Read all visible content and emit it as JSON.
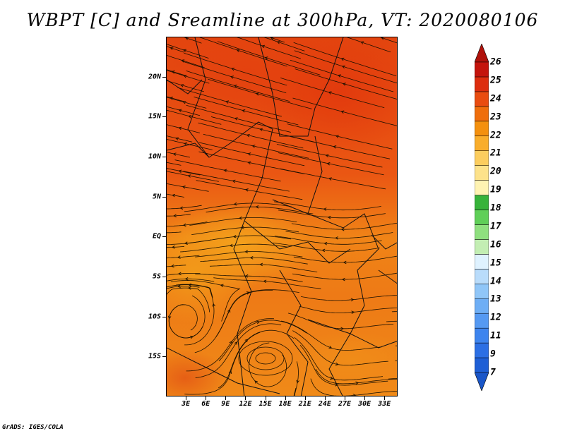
{
  "title": "WBPT [C] and Sreamline at 300hPa, VT: 2020080106",
  "footer": "GrADS: IGES/COLA",
  "map": {
    "lat_range": [
      -20,
      25
    ],
    "lon_range": [
      0,
      35
    ],
    "lat_labels": [
      "20N",
      "15N",
      "10N",
      "5N",
      "EQ",
      "5S",
      "10S",
      "15S"
    ],
    "lat_values": [
      20,
      15,
      10,
      5,
      0,
      -5,
      -10,
      -15
    ],
    "lon_labels": [
      "3E",
      "6E",
      "9E",
      "12E",
      "15E",
      "18E",
      "21E",
      "24E",
      "27E",
      "30E",
      "33E"
    ],
    "lon_values": [
      3,
      6,
      9,
      12,
      15,
      18,
      21,
      24,
      27,
      30,
      33
    ],
    "field": "WBPT",
    "overlay": "streamlines"
  },
  "colorbar": {
    "labels": [
      "7",
      "9",
      "11",
      "12",
      "13",
      "14",
      "15",
      "16",
      "17",
      "18",
      "19",
      "20",
      "21",
      "22",
      "23",
      "24",
      "25",
      "26"
    ],
    "colors": [
      "#1e5fd6",
      "#2c6fe4",
      "#3d84ee",
      "#5599f2",
      "#6eaef5",
      "#90c6f8",
      "#b9dcfb",
      "#dff2ff",
      "#c3eeb3",
      "#8fe07f",
      "#5fcf58",
      "#37b33a",
      "#fff3b2",
      "#fde28a",
      "#fccd5e",
      "#f9ad2b",
      "#f4900e",
      "#ef6e0c",
      "#e94c10",
      "#dd2d0e",
      "#c4140c"
    ],
    "arrow_low_color": "#1a56c8",
    "arrow_high_color": "#b0120b"
  }
}
